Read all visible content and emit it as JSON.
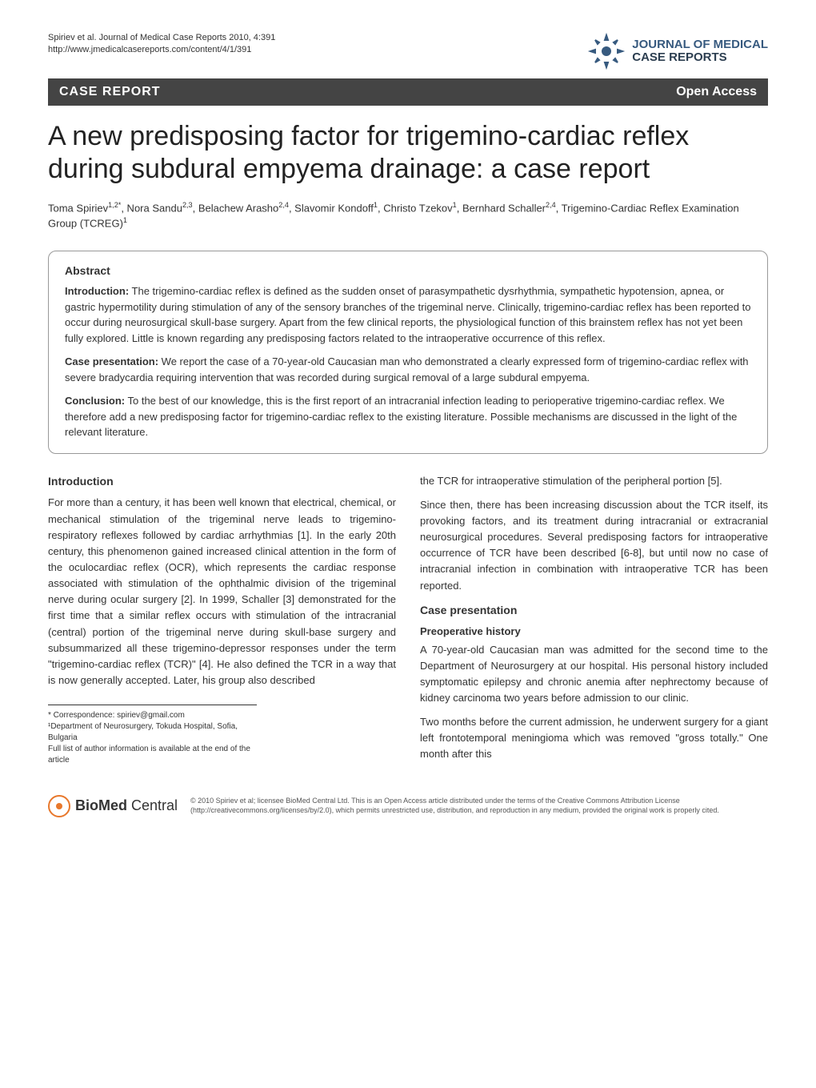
{
  "header": {
    "citation_line1": "Spiriev et al. Journal of Medical Case Reports 2010, 4:391",
    "citation_line2": "http://www.jmedicalcasereports.com/content/4/1/391",
    "journal_name_line1": "JOURNAL OF MEDICAL",
    "journal_name_line2": "CASE REPORTS"
  },
  "banner": {
    "left": "CASE REPORT",
    "right": "Open Access"
  },
  "title": "A new predisposing factor for trigemino-cardiac reflex during subdural empyema drainage: a case report",
  "authors_html": "Toma Spiriev<sup>1,2*</sup>, Nora Sandu<sup>2,3</sup>, Belachew Arasho<sup>2,4</sup>, Slavomir Kondoff<sup>1</sup>, Christo Tzekov<sup>1</sup>, Bernhard Schaller<sup>2,4</sup>, Trigemino-Cardiac Reflex Examination Group (TCREG)<sup>1</sup>",
  "abstract": {
    "heading": "Abstract",
    "intro_label": "Introduction:",
    "intro_text": " The trigemino-cardiac reflex is defined as the sudden onset of parasympathetic dysrhythmia, sympathetic hypotension, apnea, or gastric hypermotility during stimulation of any of the sensory branches of the trigeminal nerve. Clinically, trigemino-cardiac reflex has been reported to occur during neurosurgical skull-base surgery. Apart from the few clinical reports, the physiological function of this brainstem reflex has not yet been fully explored. Little is known regarding any predisposing factors related to the intraoperative occurrence of this reflex.",
    "case_label": "Case presentation:",
    "case_text": " We report the case of a 70-year-old Caucasian man who demonstrated a clearly expressed form of trigemino-cardiac reflex with severe bradycardia requiring intervention that was recorded during surgical removal of a large subdural empyema.",
    "conclusion_label": "Conclusion:",
    "conclusion_text": " To the best of our knowledge, this is the first report of an intracranial infection leading to perioperative trigemino-cardiac reflex. We therefore add a new predisposing factor for trigemino-cardiac reflex to the existing literature. Possible mechanisms are discussed in the light of the relevant literature."
  },
  "body": {
    "left": {
      "intro_heading": "Introduction",
      "intro_p1": "For more than a century, it has been well known that electrical, chemical, or mechanical stimulation of the trigeminal nerve leads to trigemino-respiratory reflexes followed by cardiac arrhythmias [1]. In the early 20th century, this phenomenon gained increased clinical attention in the form of the oculocardiac reflex (OCR), which represents the cardiac response associated with stimulation of the ophthalmic division of the trigeminal nerve during ocular surgery [2]. In 1999, Schaller [3] demonstrated for the first time that a similar reflex occurs with stimulation of the intracranial (central) portion of the trigeminal nerve during skull-base surgery and subsummarized all these trigemino-depressor responses under the term \"trigemino-cardiac reflex (TCR)\" [4]. He also defined the TCR in a way that is now generally accepted. Later, his group also described"
    },
    "right": {
      "p1": "the TCR for intraoperative stimulation of the peripheral portion [5].",
      "p2": "Since then, there has been increasing discussion about the TCR itself, its provoking factors, and its treatment during intracranial or extracranial neurosurgical procedures. Several predisposing factors for intraoperative occurrence of TCR have been described [6-8], but until now no case of intracranial infection in combination with intraoperative TCR has been reported.",
      "case_heading": "Case presentation",
      "preop_heading": "Preoperative history",
      "p3": "A 70-year-old Caucasian man was admitted for the second time to the Department of Neurosurgery at our hospital. His personal history included symptomatic epilepsy and chronic anemia after nephrectomy because of kidney carcinoma two years before admission to our clinic.",
      "p4": "Two months before the current admission, he underwent surgery for a giant left frontotemporal meningioma which was removed \"gross totally.\" One month after this"
    }
  },
  "correspondence": {
    "line1": "* Correspondence: spiriev@gmail.com",
    "line2": "¹Department of Neurosurgery, Tokuda Hospital, Sofia, Bulgaria",
    "line3": "Full list of author information is available at the end of the article"
  },
  "footer": {
    "bmc_bio": "BioMed",
    "bmc_central": " Central",
    "license": "© 2010 Spiriev et al; licensee BioMed Central Ltd. This is an Open Access article distributed under the terms of the Creative Commons Attribution License (http://creativecommons.org/licenses/by/2.0), which permits unrestricted use, distribution, and reproduction in any medium, provided the original work is properly cited."
  },
  "colors": {
    "banner_bg": "#444444",
    "banner_text": "#ffffff",
    "logo_blue": "#375a7f",
    "bmc_orange": "#e8782c"
  }
}
